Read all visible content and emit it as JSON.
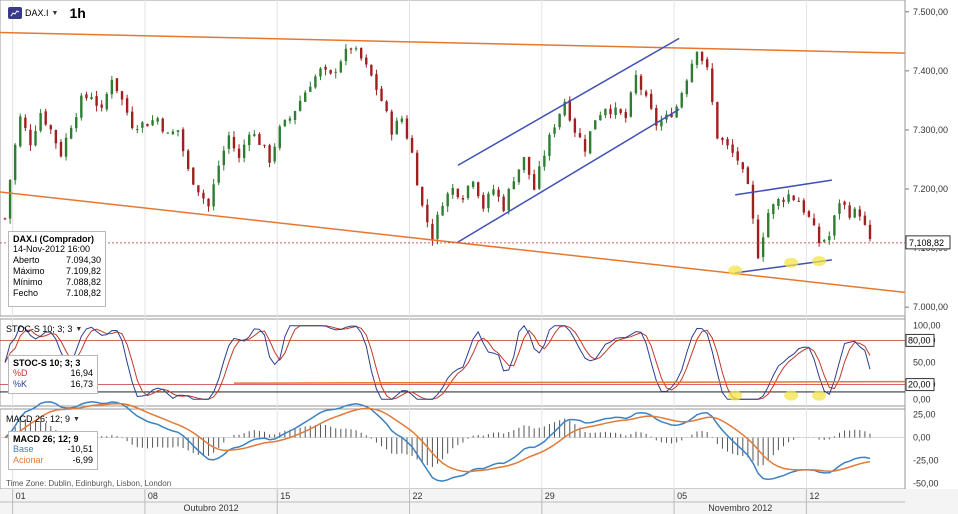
{
  "toolbar": {
    "symbol": "DAX.I",
    "interval": "1h",
    "symbol_icon": "chart-symbol-icon",
    "dropdown_icon": "chevron-down-icon"
  },
  "info_box": {
    "title": "DAX.I (Comprador)",
    "date": "14-Nov-2012 16:00",
    "rows": [
      {
        "label": "Aberto",
        "value": "7.094,30"
      },
      {
        "label": "Máximo",
        "value": "7.109,82"
      },
      {
        "label": "Mínimo",
        "value": "7.088,82"
      },
      {
        "label": "Fecho",
        "value": "7.108,82"
      }
    ]
  },
  "stoch_panel": {
    "header": "STOC-S 10; 3; 3",
    "box_title": "STOC-S 10; 3; 3",
    "rows": [
      {
        "label": "%D",
        "value": "16,94",
        "color": "#c0392b"
      },
      {
        "label": "%K",
        "value": "16,73",
        "color": "#2c3e8f"
      }
    ]
  },
  "macd_panel": {
    "header": "MACD 26; 12; 9",
    "box_title": "MACD 26; 12; 9",
    "rows": [
      {
        "label": "Base",
        "value": "-10,51",
        "color": "#3b82c4"
      },
      {
        "label": "Acionar",
        "value": "-6,99",
        "color": "#e07b39"
      }
    ]
  },
  "footer": {
    "timezone": "Time Zone: Dublin, Edinburgh, Lisbon, London"
  },
  "colors": {
    "up": "#2e7d32",
    "down": "#a02020",
    "trend_orange": "#e8772e",
    "channel_blue": "#3f51b5",
    "highlight": "#f3e44a",
    "ref_red": "#c0392b"
  },
  "chart_data": [
    {
      "type": "line",
      "name": "price",
      "y_ticks": [
        "7.500,00",
        "7.400,00",
        "7.300,00",
        "7.200,00",
        "7.100,00",
        "7.000,00"
      ],
      "ylim": [
        6985,
        7520
      ],
      "last_value": "7,108,82",
      "close_path": [
        [
          0,
          7150
        ],
        [
          3,
          7250
        ],
        [
          6,
          7320
        ],
        [
          10,
          7280
        ],
        [
          14,
          7330
        ],
        [
          18,
          7300
        ],
        [
          22,
          7260
        ],
        [
          26,
          7310
        ],
        [
          30,
          7350
        ],
        [
          34,
          7360
        ],
        [
          38,
          7330
        ],
        [
          42,
          7390
        ],
        [
          46,
          7350
        ],
        [
          50,
          7310
        ],
        [
          55,
          7310
        ],
        [
          60,
          7320
        ],
        [
          64,
          7290
        ],
        [
          68,
          7300
        ],
        [
          72,
          7230
        ],
        [
          76,
          7200
        ],
        [
          80,
          7170
        ],
        [
          84,
          7240
        ],
        [
          88,
          7290
        ],
        [
          92,
          7250
        ],
        [
          96,
          7300
        ],
        [
          100,
          7280
        ],
        [
          104,
          7250
        ],
        [
          108,
          7300
        ],
        [
          112,
          7320
        ],
        [
          116,
          7350
        ],
        [
          120,
          7380
        ],
        [
          124,
          7400
        ],
        [
          128,
          7390
        ],
        [
          132,
          7420
        ],
        [
          136,
          7440
        ],
        [
          140,
          7420
        ],
        [
          144,
          7390
        ],
        [
          148,
          7350
        ],
        [
          152,
          7300
        ],
        [
          156,
          7320
        ],
        [
          160,
          7260
        ],
        [
          164,
          7170
        ],
        [
          168,
          7120
        ],
        [
          172,
          7180
        ],
        [
          176,
          7200
        ],
        [
          180,
          7190
        ],
        [
          184,
          7220
        ],
        [
          188,
          7170
        ],
        [
          192,
          7200
        ],
        [
          196,
          7170
        ],
        [
          200,
          7220
        ],
        [
          204,
          7250
        ],
        [
          208,
          7200
        ],
        [
          212,
          7260
        ],
        [
          216,
          7310
        ],
        [
          220,
          7350
        ],
        [
          224,
          7300
        ],
        [
          228,
          7270
        ],
        [
          232,
          7320
        ],
        [
          236,
          7340
        ],
        [
          240,
          7330
        ],
        [
          244,
          7320
        ],
        [
          248,
          7390
        ],
        [
          252,
          7350
        ],
        [
          256,
          7310
        ],
        [
          260,
          7320
        ],
        [
          264,
          7340
        ],
        [
          268,
          7390
        ],
        [
          272,
          7440
        ],
        [
          276,
          7400
        ],
        [
          280,
          7290
        ],
        [
          284,
          7270
        ],
        [
          288,
          7250
        ],
        [
          292,
          7200
        ],
        [
          296,
          7090
        ],
        [
          300,
          7160
        ],
        [
          304,
          7180
        ],
        [
          308,
          7190
        ],
        [
          312,
          7180
        ],
        [
          316,
          7150
        ],
        [
          320,
          7110
        ],
        [
          324,
          7120
        ],
        [
          328,
          7180
        ],
        [
          332,
          7160
        ],
        [
          336,
          7160
        ],
        [
          340,
          7108.82
        ]
      ]
    },
    {
      "type": "line",
      "name": "STOC-S 10; 3; 3",
      "y_ticks": [
        "100,00",
        "80,00",
        "50,00",
        "20,00",
        "0,00"
      ],
      "ylim": [
        -5,
        105
      ],
      "reference_lines": [
        80,
        20
      ],
      "badges": [
        "80,00",
        "20,00"
      ]
    },
    {
      "type": "line",
      "name": "MACD 26; 12; 9",
      "y_ticks": [
        "25,00",
        "0,00",
        "-25,00",
        "-50,00"
      ],
      "ylim": [
        -55,
        30
      ]
    }
  ],
  "x_axis": {
    "ticks": [
      "01",
      "08",
      "15",
      "22",
      "29",
      "05",
      "12"
    ],
    "months": [
      "Outubro 2012",
      "Novembro 2012"
    ]
  }
}
